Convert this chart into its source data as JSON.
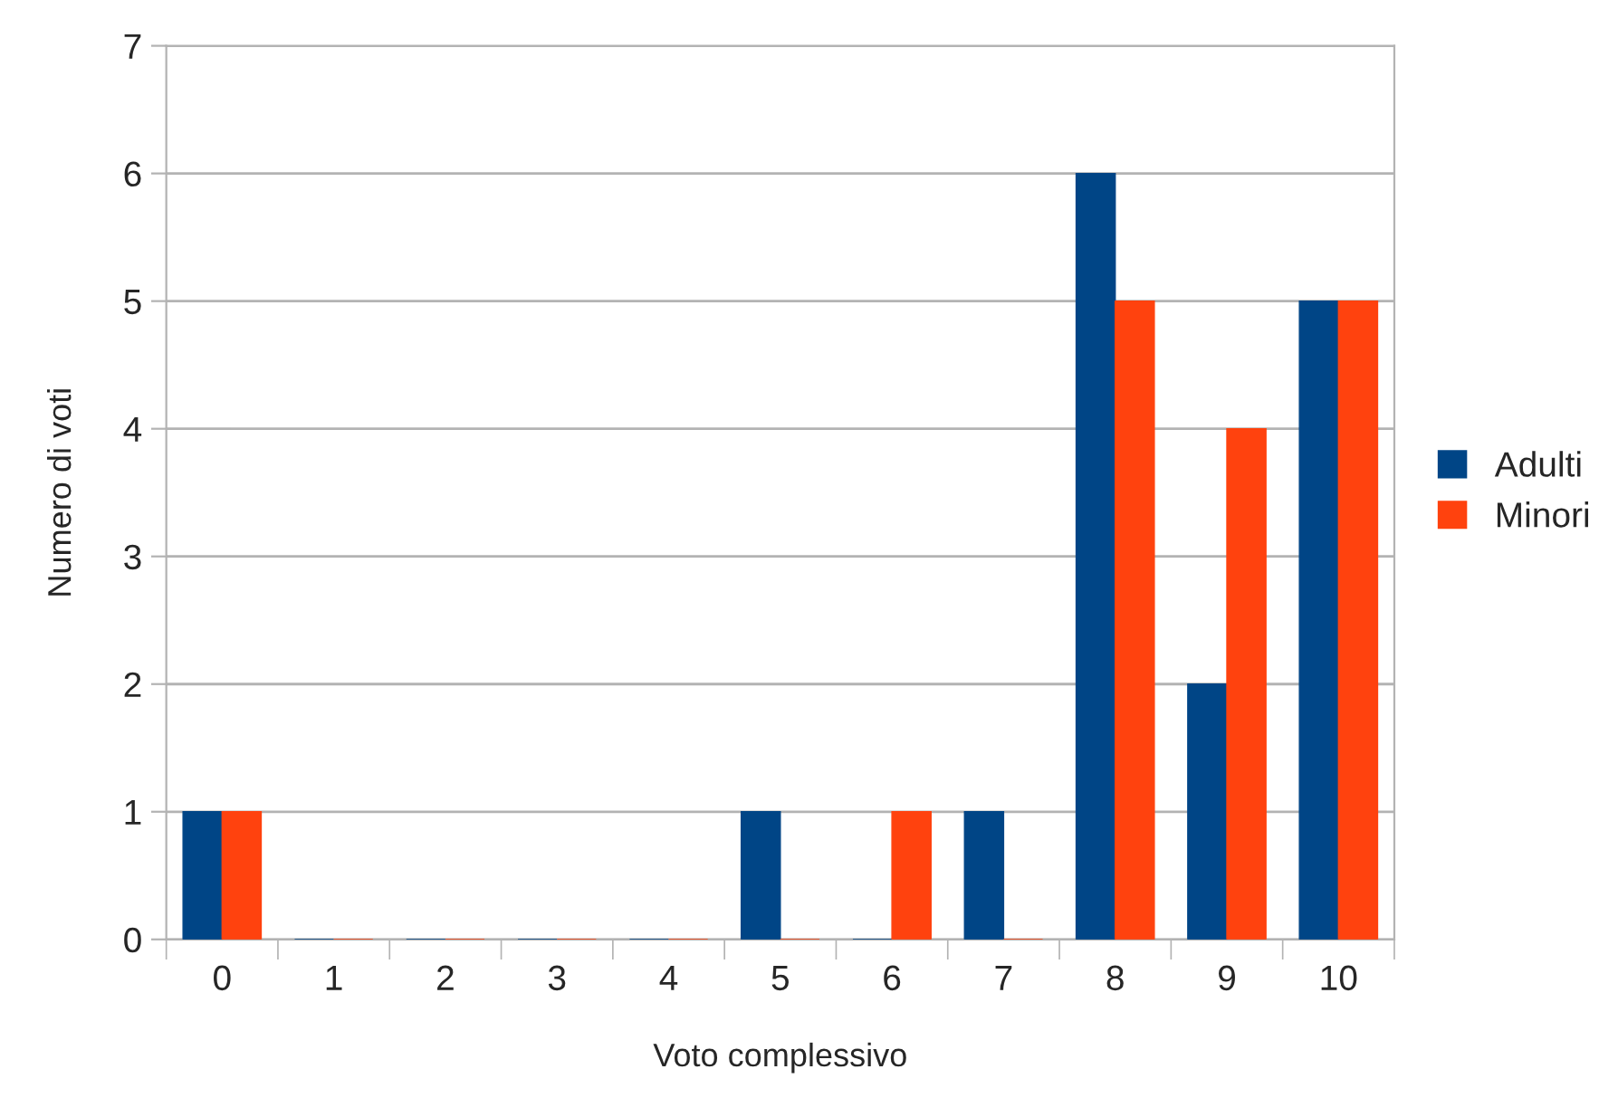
{
  "chart_data": {
    "type": "bar",
    "xlabel": "Voto complessivo",
    "ylabel": "Numero di voti",
    "categories": [
      "0",
      "1",
      "2",
      "3",
      "4",
      "5",
      "6",
      "7",
      "8",
      "9",
      "10"
    ],
    "series": [
      {
        "name": "Adulti",
        "color": "#004586",
        "values": [
          1,
          0,
          0,
          0,
          0,
          1,
          0,
          1,
          6,
          2,
          5
        ]
      },
      {
        "name": "Minori",
        "color": "#ff420e",
        "values": [
          1,
          0,
          0,
          0,
          0,
          0,
          1,
          0,
          5,
          4,
          5
        ]
      }
    ],
    "ylim": [
      0,
      7
    ],
    "yticks": [
      0,
      1,
      2,
      3,
      4,
      5,
      6,
      7
    ],
    "grid": "y",
    "legend": "right"
  }
}
